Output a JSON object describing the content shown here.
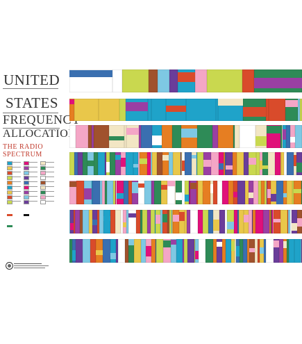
{
  "title": {
    "line1": "UNITED",
    "line2": "STATES",
    "line3": "FREQUENCY",
    "line4": "ALLOCATIONS",
    "subtitle": "THE RADIO SPECTRUM"
  },
  "colors": {
    "title_text": "#333333",
    "subtitle": "#c0392b",
    "palette": [
      "#1fa3c9",
      "#e0107a",
      "#f2e6c4",
      "#e9c74a",
      "#9a3fa3",
      "#2e8b57",
      "#d94b2b",
      "#7ec8e3",
      "#f4a6c6",
      "#c9d84f",
      "#6a3d9a",
      "#ffffff",
      "#e67e22",
      "#3a6fb0",
      "#a0522d"
    ]
  },
  "bands": [
    {
      "name": "band-1"
    },
    {
      "name": "band-2"
    },
    {
      "name": "band-3"
    },
    {
      "name": "band-4"
    },
    {
      "name": "band-5"
    },
    {
      "name": "band-6"
    },
    {
      "name": "band-7"
    }
  ]
}
